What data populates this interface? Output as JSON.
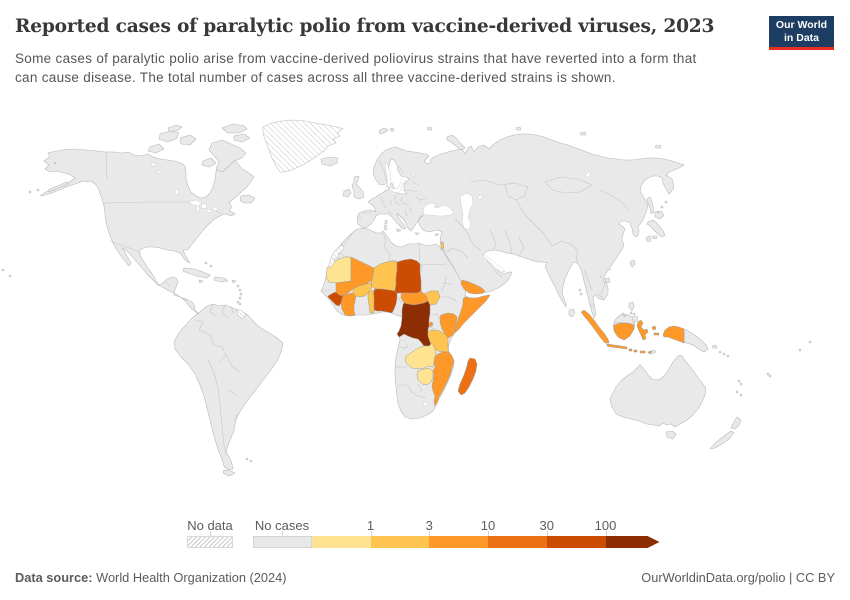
{
  "header": {
    "title": "Reported cases of paralytic polio from vaccine-derived viruses, 2023",
    "subtitle": "Some cases of paralytic polio arise from vaccine-derived poliovirus strains that have reverted into a form that can cause disease. The total number of cases across all three vaccine-derived strains is shown.",
    "logo": {
      "line1": "Our World",
      "line2": "in Data",
      "bg_color": "#1d3d63",
      "accent_color": "#e82e1f"
    }
  },
  "legend": {
    "no_data_label": "No data",
    "no_cases_label": "No cases",
    "tick_labels": [
      "1",
      "3",
      "10",
      "30",
      "100"
    ],
    "bins": [
      {
        "label": "0-1",
        "color": "#fee391"
      },
      {
        "label": "1-3",
        "color": "#fec44f"
      },
      {
        "label": "3-10",
        "color": "#fe9929"
      },
      {
        "label": "10-30",
        "color": "#ec7014"
      },
      {
        "label": "30-100",
        "color": "#cc4c02"
      },
      {
        "label": "100+",
        "color": "#8c2d04"
      }
    ],
    "no_cases_color": "#e8e8e8"
  },
  "footer": {
    "source_label": "Data source:",
    "source_value": "World Health Organization (2024)",
    "link_text": "OurWorldinData.org/polio | CC BY"
  },
  "map": {
    "category_colors": {
      "0-1": "#fee391",
      "1-3": "#fec44f",
      "3-10": "#fe9929",
      "10-30": "#ec7014",
      "30-100": "#cc4c02",
      "100+": "#8c2d04",
      "no_cases": "#e8e8e8",
      "no_data": "hatch"
    },
    "countries": [
      {
        "id": "mauritania",
        "name": "Mauritania",
        "category": "0-1"
      },
      {
        "id": "mali",
        "name": "Mali",
        "category": "3-10"
      },
      {
        "id": "burkina_faso",
        "name": "Burkina Faso",
        "category": "1-3"
      },
      {
        "id": "niger",
        "name": "Niger",
        "category": "1-3"
      },
      {
        "id": "chad",
        "name": "Chad",
        "category": "30-100"
      },
      {
        "id": "nigeria",
        "name": "Nigeria",
        "category": "30-100"
      },
      {
        "id": "benin",
        "name": "Benin",
        "category": "1-3"
      },
      {
        "id": "cote_divoire",
        "name": "Cote d'Ivoire",
        "category": "3-10"
      },
      {
        "id": "guinea",
        "name": "Guinea",
        "category": "30-100"
      },
      {
        "id": "central_african_republic",
        "name": "Central African Republic",
        "category": "3-10"
      },
      {
        "id": "south_sudan",
        "name": "South Sudan",
        "category": "1-3"
      },
      {
        "id": "democratic_republic_of_congo",
        "name": "Democratic Republic of Congo",
        "category": "100+"
      },
      {
        "id": "burundi",
        "name": "Burundi",
        "category": "3-10"
      },
      {
        "id": "somalia",
        "name": "Somalia",
        "category": "3-10"
      },
      {
        "id": "kenya",
        "name": "Kenya",
        "category": "3-10"
      },
      {
        "id": "tanzania",
        "name": "Tanzania",
        "category": "1-3"
      },
      {
        "id": "zambia",
        "name": "Zambia",
        "category": "0-1"
      },
      {
        "id": "zimbabwe",
        "name": "Zimbabwe",
        "category": "0-1"
      },
      {
        "id": "mozambique",
        "name": "Mozambique",
        "category": "3-10"
      },
      {
        "id": "madagascar",
        "name": "Madagascar",
        "category": "10-30"
      },
      {
        "id": "yemen",
        "name": "Yemen",
        "category": "3-10"
      },
      {
        "id": "israel",
        "name": "Israel",
        "category": "1-3"
      },
      {
        "id": "indonesia",
        "name": "Indonesia",
        "category": "3-10"
      }
    ],
    "no_data_regions": [
      "Greenland",
      "Western Sahara",
      "French Guiana"
    ]
  },
  "chart_data": {
    "type": "choropleth",
    "title": "Reported cases of paralytic polio from vaccine-derived viruses, 2023",
    "unit": "reported cases",
    "year": 2023,
    "legend_bins": [
      "No data",
      "No cases",
      "1",
      "3",
      "10",
      "30",
      "100"
    ],
    "bin_colors": [
      "hatched",
      "#e8e8e8",
      "#fee391",
      "#fec44f",
      "#fe9929",
      "#ec7014",
      "#cc4c02",
      "#8c2d04"
    ],
    "values": {
      "Mauritania": "0-1",
      "Mali": "3-10",
      "Burkina Faso": "1-3",
      "Niger": "1-3",
      "Chad": "30-100",
      "Nigeria": "30-100",
      "Benin": "1-3",
      "Cote d'Ivoire": "3-10",
      "Guinea": "30-100",
      "Central African Republic": "3-10",
      "South Sudan": "1-3",
      "Democratic Republic of Congo": "100+",
      "Burundi": "3-10",
      "Somalia": "3-10",
      "Kenya": "3-10",
      "Tanzania": "1-3",
      "Zambia": "0-1",
      "Zimbabwe": "0-1",
      "Mozambique": "3-10",
      "Madagascar": "10-30",
      "Yemen": "3-10",
      "Israel": "1-3",
      "Indonesia": "3-10"
    },
    "source": "World Health Organization (2024)"
  }
}
